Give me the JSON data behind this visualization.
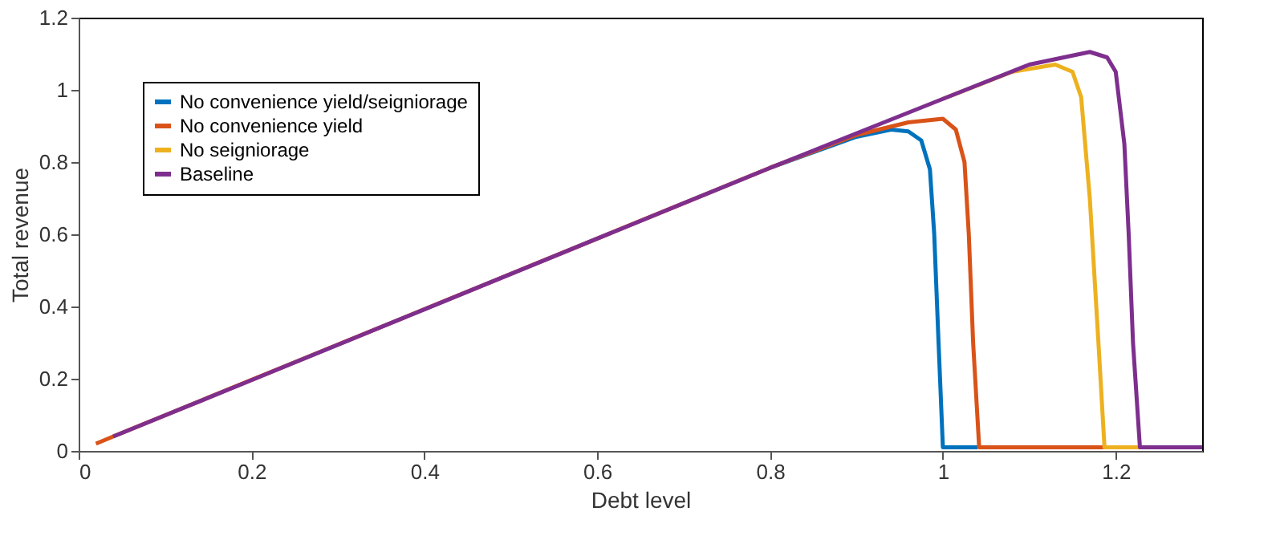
{
  "chart_data": {
    "type": "line",
    "xlabel": "Debt level",
    "ylabel": "Total revenue",
    "xlim": [
      0,
      1.3
    ],
    "ylim": [
      0,
      1.2
    ],
    "xticks": [
      0,
      0.2,
      0.4,
      0.6,
      0.8,
      1,
      1.2
    ],
    "yticks": [
      0,
      0.2,
      0.4,
      0.6,
      0.8,
      1,
      1.2
    ],
    "grid": false,
    "legend": "top left",
    "marker": "none",
    "line_style": "solid",
    "series": [
      {
        "name": "No convenience yield/seigniorage",
        "color": "#0072bd",
        "x": [
          0.8,
          0.9,
          0.94,
          0.96,
          0.975,
          0.985,
          0.99,
          0.995,
          1.0,
          1.04
        ],
        "values": [
          0.784,
          0.87,
          0.89,
          0.885,
          0.86,
          0.78,
          0.6,
          0.3,
          0.01,
          0.01
        ]
      },
      {
        "name": "No convenience yield",
        "color": "#d95319",
        "x": [
          0.02,
          0.04,
          0.8,
          0.9,
          0.96,
          1.0,
          1.015,
          1.025,
          1.03,
          1.035,
          1.042,
          1.19
        ],
        "values": [
          0.02,
          0.04,
          0.784,
          0.875,
          0.91,
          0.92,
          0.89,
          0.8,
          0.6,
          0.3,
          0.01,
          0.01
        ]
      },
      {
        "name": "No seigniorage",
        "color": "#edb120",
        "x": [
          1.0,
          1.08,
          1.13,
          1.15,
          1.16,
          1.17,
          1.18,
          1.187,
          1.23
        ],
        "values": [
          0.975,
          1.05,
          1.07,
          1.05,
          0.98,
          0.7,
          0.3,
          0.01,
          0.01
        ]
      },
      {
        "name": "Baseline",
        "color": "#7e2f8e",
        "x": [
          0.04,
          0.2,
          0.4,
          0.6,
          0.8,
          1.0,
          1.1,
          1.17,
          1.19,
          1.2,
          1.21,
          1.215,
          1.22,
          1.228,
          1.3
        ],
        "values": [
          0.04,
          0.196,
          0.392,
          0.588,
          0.784,
          0.975,
          1.07,
          1.105,
          1.09,
          1.05,
          0.85,
          0.6,
          0.3,
          0.01,
          0.01
        ]
      }
    ]
  }
}
